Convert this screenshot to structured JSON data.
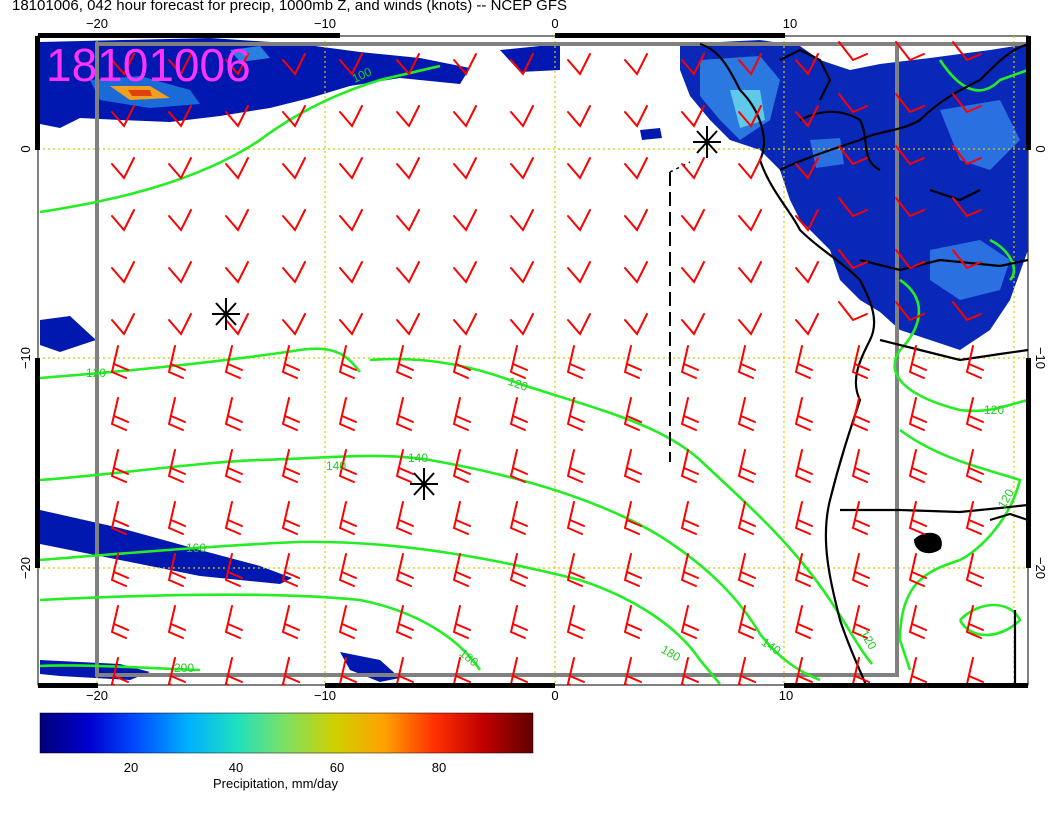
{
  "title": "18101006, 042 hour forecast for precip, 1000mb Z, and winds (knots) -- NCEP GFS",
  "stamp": "18101006",
  "axes": {
    "lon_ticks": [
      "−20",
      "−10",
      "0",
      "10"
    ],
    "lat_ticks_left": [
      "0",
      "−10",
      "−20"
    ],
    "lat_ticks_right": [
      "0",
      "−10",
      "−20"
    ]
  },
  "contour_labels": [
    {
      "text": "100"
    },
    {
      "text": "120"
    },
    {
      "text": "120"
    },
    {
      "text": "120"
    },
    {
      "text": "140"
    },
    {
      "text": "140"
    },
    {
      "text": "140"
    },
    {
      "text": "160"
    },
    {
      "text": "180"
    },
    {
      "text": "180"
    },
    {
      "text": "120"
    },
    {
      "text": "200"
    },
    {
      "text": "120"
    }
  ],
  "colorbar": {
    "title": "Precipitation, mm/day",
    "ticks": [
      "20",
      "40",
      "60",
      "80"
    ],
    "colors": [
      "#00007a",
      "#0000d0",
      "#0050ff",
      "#00b0ff",
      "#20e0c0",
      "#80e060",
      "#d0d000",
      "#ffa000",
      "#ff3000",
      "#c00000",
      "#600000"
    ]
  },
  "colors": {
    "wind_barb": "#ff0000",
    "contour": "#00ee00",
    "coast": "#000000",
    "grid": "#d8c800",
    "frame": "#808080"
  }
}
